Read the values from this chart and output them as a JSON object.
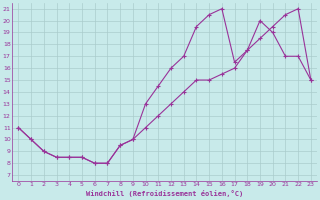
{
  "xlabel": "Windchill (Refroidissement éolien,°C)",
  "ylabel_ticks": [
    7,
    8,
    9,
    10,
    11,
    12,
    13,
    14,
    15,
    16,
    17,
    18,
    19,
    20,
    21
  ],
  "xlabel_ticks": [
    0,
    1,
    2,
    3,
    4,
    5,
    6,
    7,
    8,
    9,
    10,
    11,
    12,
    13,
    14,
    15,
    16,
    17,
    18,
    19,
    20,
    21,
    22,
    23
  ],
  "xlim": [
    -0.5,
    23.5
  ],
  "ylim": [
    6.5,
    21.5
  ],
  "bg_color": "#c8eaea",
  "grid_color": "#aacccc",
  "line_color": "#993399",
  "marker": "+",
  "line1_x": [
    0,
    1,
    2,
    3,
    4,
    5,
    6,
    7,
    8,
    9,
    10,
    11,
    12,
    13,
    14,
    15,
    16,
    17,
    18,
    19,
    20,
    21,
    22,
    23
  ],
  "line1_y": [
    11,
    10,
    9,
    8.5,
    8.5,
    8.5,
    8,
    8,
    9.5,
    10,
    13,
    14.5,
    16,
    17,
    19.5,
    20.5,
    21,
    16.5,
    17.5,
    20,
    19,
    17,
    17,
    15
  ],
  "line2_x": [
    0,
    1,
    2,
    3,
    4,
    5,
    6,
    7,
    8,
    9,
    10,
    11,
    12,
    13,
    14,
    15,
    16,
    17,
    18,
    19,
    20,
    21,
    22,
    23
  ],
  "line2_y": [
    11,
    10,
    9,
    8.5,
    8.5,
    8.5,
    8,
    8,
    9.5,
    10,
    11,
    12,
    13,
    14,
    15,
    15,
    15.5,
    16,
    17.5,
    18.5,
    19.5,
    20.5,
    21,
    15
  ]
}
